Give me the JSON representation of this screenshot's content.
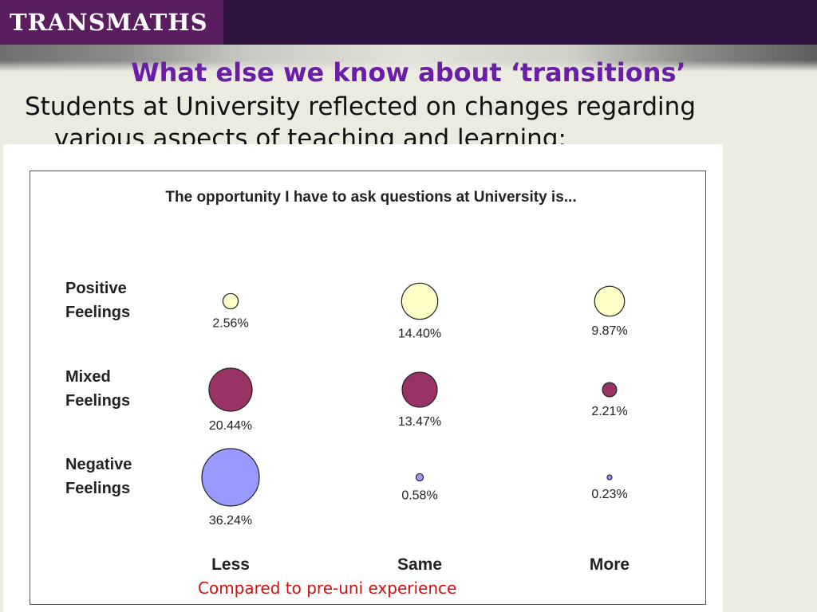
{
  "header": {
    "logo_text": "TRANSMATHS"
  },
  "slide": {
    "title": "What else we know about ‘transitions’",
    "body_line1": "Students at University reflected on changes regarding",
    "body_line2": "various aspects of teaching and learning:",
    "caption": "Compared to pre-uni experience"
  },
  "chart_data": {
    "type": "scatter",
    "title": "The opportunity I have to ask questions at University is...",
    "x_categories": [
      "Less",
      "Same",
      "More"
    ],
    "y_categories": [
      "Positive\nFeelings",
      "Mixed\nFeelings",
      "Negative\nFeelings"
    ],
    "series": [
      {
        "name": "Positive Feelings",
        "values": [
          2.56,
          14.4,
          9.87
        ],
        "labels": [
          "2.56%",
          "14.40%",
          "9.87%"
        ],
        "color": "#ffffc8"
      },
      {
        "name": "Mixed Feelings",
        "values": [
          20.44,
          13.47,
          2.21
        ],
        "labels": [
          "20.44%",
          "13.47%",
          "2.21%"
        ],
        "color": "#993366"
      },
      {
        "name": "Negative Feelings",
        "values": [
          36.24,
          0.58,
          0.23
        ],
        "labels": [
          "36.24%",
          "0.58%",
          "0.23%"
        ],
        "color": "#9999ff"
      }
    ],
    "value_unit": "%",
    "grid": false,
    "legend": "none"
  }
}
